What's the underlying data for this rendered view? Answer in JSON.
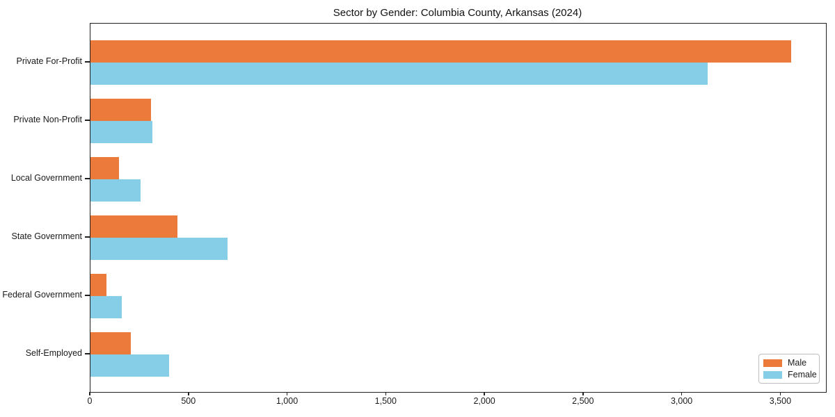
{
  "title": "Sector by Gender: Columbia County, Arkansas (2024)",
  "colors": {
    "male": "#eb7a3b",
    "female": "#86cde8",
    "axis": "#1f1f1f",
    "legend_border": "#bdbdbd",
    "background": "#ffffff"
  },
  "chart_data": {
    "type": "bar",
    "orientation": "horizontal",
    "title": "Sector by Gender: Columbia County, Arkansas (2024)",
    "xlabel": "",
    "ylabel": "",
    "categories": [
      "Private For-Profit",
      "Private Non-Profit",
      "Local Government",
      "State Government",
      "Federal Government",
      "Self-Employed"
    ],
    "series": [
      {
        "name": "Male",
        "color": "#eb7a3b",
        "values": [
          3550,
          305,
          145,
          440,
          80,
          205
        ]
      },
      {
        "name": "Female",
        "color": "#86cde8",
        "values": [
          3130,
          315,
          255,
          695,
          160,
          400
        ]
      }
    ],
    "x_ticks": [
      "0",
      "500",
      "1,000",
      "1,500",
      "2,000",
      "2,500",
      "3,000",
      "3,500"
    ],
    "x_tick_values": [
      0,
      500,
      1000,
      1500,
      2000,
      2500,
      3000,
      3500
    ],
    "xlim": [
      0,
      3728
    ],
    "grid": false,
    "legend": {
      "position": "lower right",
      "entries": [
        "Male",
        "Female"
      ]
    }
  }
}
